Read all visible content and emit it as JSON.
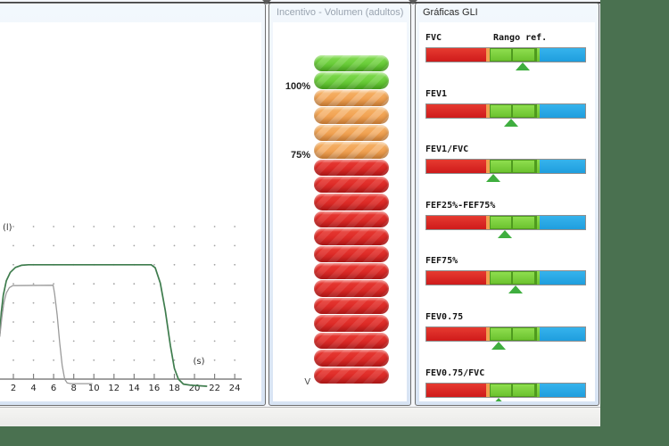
{
  "left_panel": {
    "title": "",
    "chart_data": {
      "type": "line",
      "title": "",
      "xlabel": "(s)",
      "ylabel": "(l)",
      "x_ticks": [
        2,
        4,
        6,
        8,
        10,
        12,
        14,
        16,
        18,
        20,
        22,
        24
      ],
      "x_range_visible": [
        0.6,
        25
      ],
      "grid": "dotted",
      "legend": "none",
      "series": [
        {
          "name": "volume-time-curve-green",
          "color": "#3e7c4d",
          "points": [
            [
              0.65,
              0.3
            ],
            [
              0.8,
              0.44
            ],
            [
              1.0,
              0.55
            ],
            [
              1.3,
              0.645
            ],
            [
              1.7,
              0.7
            ],
            [
              2.2,
              0.732
            ],
            [
              2.8,
              0.746
            ],
            [
              3.5,
              0.75
            ],
            [
              15.7,
              0.75
            ],
            [
              16.1,
              0.73
            ],
            [
              16.6,
              0.63
            ],
            [
              17.1,
              0.45
            ],
            [
              17.6,
              0.22
            ],
            [
              18.0,
              0.07
            ],
            [
              18.4,
              0.0
            ],
            [
              18.9,
              -0.033
            ],
            [
              19.6,
              -0.04
            ],
            [
              21.2,
              -0.047
            ]
          ]
        },
        {
          "name": "volume-time-curve-gray",
          "color": "#9a9a9a",
          "points": [
            [
              0.65,
              0.28
            ],
            [
              0.85,
              0.4
            ],
            [
              1.05,
              0.5
            ],
            [
              1.3,
              0.565
            ],
            [
              1.6,
              0.6
            ],
            [
              1.95,
              0.613
            ],
            [
              5.95,
              0.615
            ],
            [
              6.1,
              0.56
            ],
            [
              6.35,
              0.42
            ],
            [
              6.6,
              0.24
            ],
            [
              6.85,
              0.09
            ],
            [
              7.1,
              0.0
            ],
            [
              7.35,
              -0.025
            ],
            [
              7.7,
              -0.03
            ],
            [
              9.8,
              -0.03
            ]
          ]
        }
      ]
    }
  },
  "incentive_panel": {
    "title": "Incentivo - Volumen (adultos)",
    "scale_labels": [
      {
        "text": "100%",
        "at_segment_boundary": 2
      },
      {
        "text": "75%",
        "at_segment_boundary": 6
      }
    ],
    "bottom_label": "V",
    "segments": [
      "green",
      "green",
      "orange",
      "orange",
      "orange",
      "orange",
      "red",
      "red",
      "red",
      "red",
      "red",
      "red",
      "red",
      "red",
      "red",
      "red",
      "red",
      "red",
      "red"
    ],
    "segment_colors": {
      "green": {
        "top": "#83dc52",
        "bottom": "#55c125",
        "stripe": "rgba(255,255,255,0.14)"
      },
      "orange": {
        "top": "#f6b469",
        "bottom": "#ee9440",
        "stripe": "rgba(255,255,255,0.22)"
      },
      "red": {
        "top": "#ea3c34",
        "bottom": "#d31d1d",
        "stripe": "rgba(255,255,255,0.10)"
      }
    }
  },
  "gli_panel": {
    "title": "Gráficas GLI",
    "ref_range_header": "Rango ref.",
    "rows": [
      {
        "label": "FVC",
        "marker": 0.6
      },
      {
        "label": "FEV1",
        "marker": 0.528
      },
      {
        "label": "FEV1/FVC",
        "marker": 0.417
      },
      {
        "label": "FEF25%-FEF75%",
        "marker": 0.489
      },
      {
        "label": "FEF75%",
        "marker": 0.556
      },
      {
        "label": "FEV0.75",
        "marker": 0.45
      },
      {
        "label": "FEV0.75/FVC",
        "marker": 0.45
      }
    ],
    "bar_colors": {
      "red": {
        "top": "#e63a30",
        "bottom": "#cf1b1b"
      },
      "orange_sliver": "#f0a04e",
      "green": {
        "top": "#8ede4e",
        "bottom": "#6cc22f"
      },
      "green_border": "#4e9a1e",
      "blue": {
        "top": "#36b3ec",
        "bottom": "#1f9ede"
      },
      "marker": "#3fae3f"
    }
  }
}
